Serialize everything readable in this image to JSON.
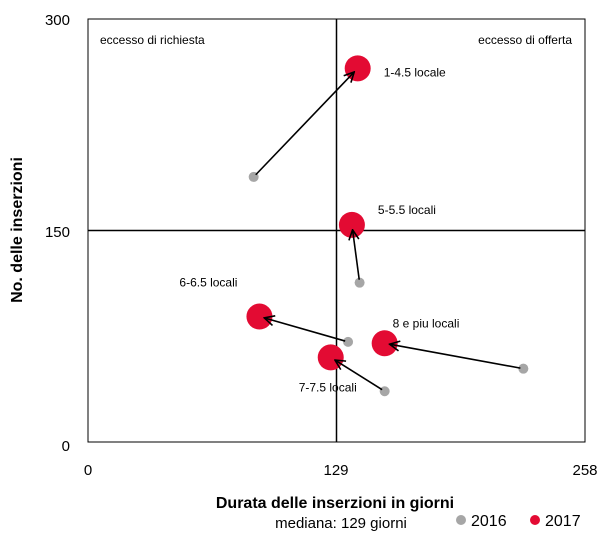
{
  "chart_data": {
    "type": "scatter",
    "xlabel": "Durata delle inserzioni in giorni",
    "xsubtitle": "mediana: 129 giorni",
    "ylabel": "No. delle inserzioni",
    "xlim": [
      0,
      258
    ],
    "ylim": [
      0,
      300
    ],
    "xticks": [
      "0",
      "129",
      "258"
    ],
    "yticks": [
      "0",
      "150",
      "300"
    ],
    "median_x": 129,
    "median_y": 150,
    "quadrant_labels": {
      "top_left": "eccesso di richiesta",
      "top_right": "eccesso di offerta"
    },
    "legend": [
      {
        "name": "2016",
        "color": "#a6a6a6"
      },
      {
        "name": "2017",
        "color": "#e30b33"
      }
    ],
    "points": [
      {
        "label": "1-4.5 locale",
        "x2016": 86,
        "y2016": 188,
        "x2017": 140,
        "y2017": 265
      },
      {
        "label": "5-5.5 locali",
        "x2016": 141,
        "y2016": 113,
        "x2017": 137,
        "y2017": 154
      },
      {
        "label": "6-6.5 locali",
        "x2016": 135,
        "y2016": 71,
        "x2017": 89,
        "y2017": 89
      },
      {
        "label": "8 e piu locali",
        "x2016": 226,
        "y2016": 52,
        "x2017": 154,
        "y2017": 70
      },
      {
        "label": "7-7.5 locali",
        "x2016": 154,
        "y2016": 36,
        "x2017": 126,
        "y2017": 60
      }
    ]
  }
}
